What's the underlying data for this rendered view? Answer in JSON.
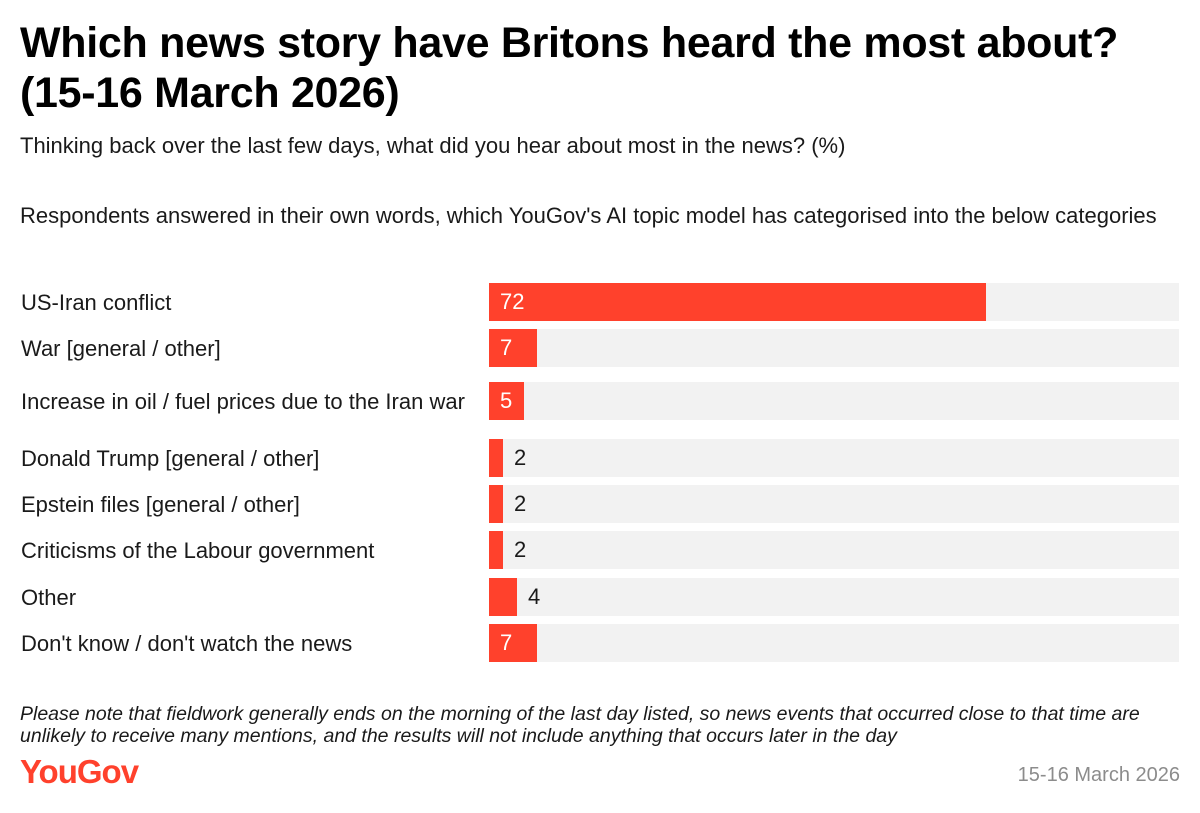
{
  "title": "Which news story have Britons heard the most about? (15-16 March 2026)",
  "subtitle": "Thinking back over the last few days, what did you hear about most in the news? (%)",
  "description": "Respondents answered in their own words, which YouGov's AI topic model has categorised into the below categories",
  "note": "Please note that fieldwork generally ends on the morning of the last day listed, so news events that occurred close to that time are unlikely to receive many mentions, and the results will not include anything that occurs later in the day",
  "logo_text": "YouGov",
  "date": "15-16 March 2026",
  "colors": {
    "bar": "#ff412c",
    "track": "#f2f2f2",
    "logo": "#ff412c"
  },
  "chart_data": {
    "type": "bar",
    "orientation": "horizontal",
    "categories": [
      "US-Iran conflict",
      "War [general / other]",
      "Increase in oil / fuel prices due to the Iran war",
      "Donald Trump [general / other]",
      "Epstein files [general / other]",
      "Criticisms of the Labour government",
      "Other",
      "Don't know / don't watch the news"
    ],
    "values": [
      72,
      7,
      5,
      2,
      2,
      2,
      4,
      7
    ],
    "xlim": [
      0,
      100
    ],
    "grid": false
  }
}
